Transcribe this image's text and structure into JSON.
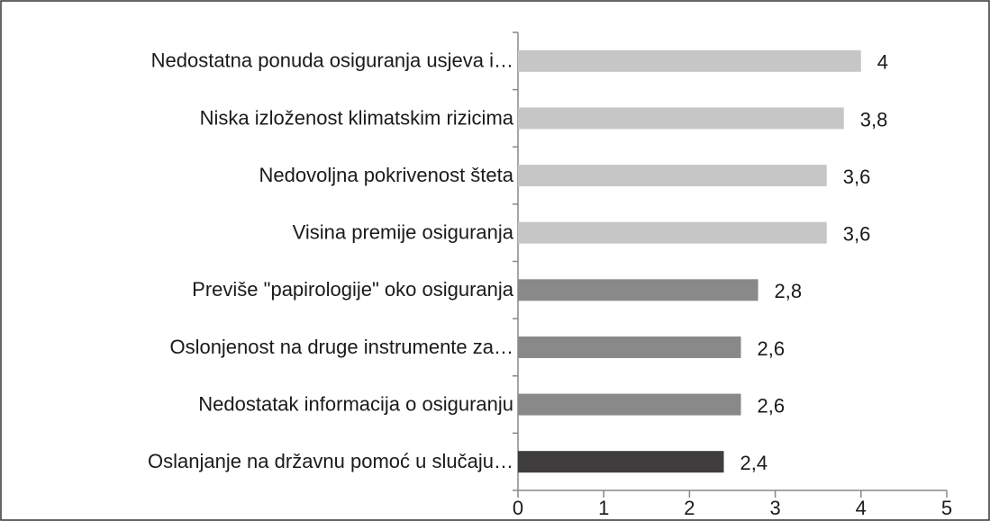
{
  "chart_data": {
    "type": "barh",
    "categories": [
      "Nedostatna ponuda osiguranja usjeva i…",
      "Niska izloženost klimatskim rizicima",
      "Nedovoljna pokrivenost šteta",
      "Visina premije osiguranja",
      "Previše \"papirologije\" oko osiguranja",
      "Oslonjenost na druge instrumente za…",
      "Nedostatak informacija o osiguranju",
      "Oslanjanje na državnu pomoć u slučaju…"
    ],
    "values": [
      4,
      3.8,
      3.6,
      3.6,
      2.8,
      2.6,
      2.6,
      2.4
    ],
    "value_labels": [
      "4",
      "3,8",
      "3,6",
      "3,6",
      "2,8",
      "2,6",
      "2,6",
      "2,4"
    ],
    "colors": [
      "#c6c6c6",
      "#c6c6c6",
      "#c6c6c6",
      "#c6c6c6",
      "#898989",
      "#898989",
      "#898989",
      "#3f3d3e"
    ],
    "xlim": [
      0,
      5
    ],
    "xticks": [
      0,
      1,
      2,
      3,
      4,
      5
    ],
    "grid": false
  }
}
